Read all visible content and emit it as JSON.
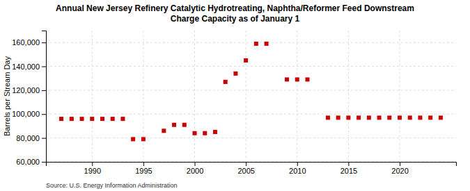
{
  "chart_data": {
    "type": "scatter",
    "title": "Annual New Jersey Refinery Catalytic Hydrotreating, Naphtha/Reformer Feed Downstream\nCharge Capacity as of January 1",
    "ylabel": "Barrels per Stream Day",
    "source": "Source:  U.S. Energy Information Administration",
    "color": "#cc0000",
    "marker": "square",
    "grid": true,
    "x": [
      1987,
      1988,
      1989,
      1990,
      1991,
      1992,
      1993,
      1994,
      1995,
      1997,
      1998,
      1999,
      2000,
      2001,
      2002,
      2003,
      2004,
      2005,
      2006,
      2007,
      2009,
      2010,
      2011,
      2013,
      2014,
      2015,
      2016,
      2017,
      2018,
      2019,
      2020,
      2021,
      2022,
      2023,
      2024
    ],
    "values": [
      96000,
      96000,
      96000,
      96000,
      96000,
      96000,
      96000,
      79000,
      79000,
      86000,
      91000,
      91000,
      84000,
      84000,
      85000,
      127000,
      134000,
      145000,
      159000,
      159000,
      129000,
      129000,
      129000,
      97000,
      97000,
      97000,
      97000,
      97000,
      97000,
      97000,
      97000,
      97000,
      97000,
      97000,
      97000
    ],
    "xlim": [
      1985.5,
      2025.5
    ],
    "ylim": [
      60000,
      170000
    ],
    "xticks": [
      1990,
      1995,
      2000,
      2005,
      2010,
      2015,
      2020
    ],
    "yticks": [
      {
        "value": 60000,
        "label": "60,000"
      },
      {
        "value": 80000,
        "label": "80,000"
      },
      {
        "value": 100000,
        "label": "100,000"
      },
      {
        "value": 120000,
        "label": "120,000"
      },
      {
        "value": 140000,
        "label": "140,000"
      },
      {
        "value": 160000,
        "label": "160,000"
      }
    ]
  }
}
